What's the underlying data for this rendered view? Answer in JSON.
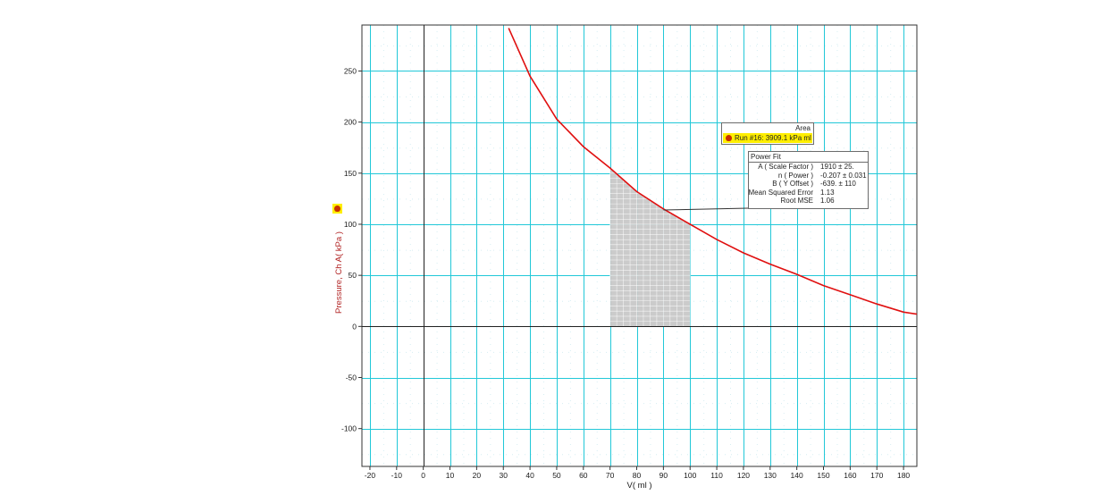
{
  "chart_data": {
    "type": "line",
    "xlabel": "V( ml )",
    "ylabel": "Pressure, Ch A( kPa )",
    "xlim": [
      -23,
      185
    ],
    "ylim": [
      -137,
      295
    ],
    "x_ticks": [
      "-20",
      "-10",
      "0",
      "10",
      "20",
      "30",
      "40",
      "50",
      "60",
      "70",
      "80",
      "90",
      "100",
      "110",
      "120",
      "130",
      "140",
      "150",
      "160",
      "170",
      "180"
    ],
    "y_ticks": [
      "-100",
      "-50",
      "0",
      "50",
      "100",
      "150",
      "200",
      "250"
    ],
    "grid": true,
    "series": [
      {
        "name": "Run #16",
        "color": "#e01010",
        "x": [
          32,
          40,
          50,
          60,
          70,
          80,
          90,
          100,
          110,
          120,
          130,
          140,
          150,
          160,
          170,
          180,
          185
        ],
        "y": [
          292,
          245,
          203,
          176,
          155,
          132,
          115,
          100,
          85,
          72,
          61,
          51,
          40,
          31,
          22,
          14,
          12
        ]
      }
    ],
    "shaded_area": {
      "x_start": 70,
      "x_end": 100,
      "color": "#c8c8c8"
    }
  },
  "area_box": {
    "title": "Area",
    "run_label": "Run #16: 3909.1 kPa ml"
  },
  "power_fit": {
    "title": "Power Fit",
    "rows": [
      {
        "name": "A ( Scale Factor )",
        "value": "1910 ±   25."
      },
      {
        "name": "n ( Power )",
        "value": "-0.207 ± 0.031"
      },
      {
        "name": "B ( Y Offset )",
        "value": "-639. ±  110"
      },
      {
        "name": "Mean Squared Error",
        "value": "1.13"
      },
      {
        "name": "Root MSE",
        "value": "1.06"
      }
    ]
  }
}
